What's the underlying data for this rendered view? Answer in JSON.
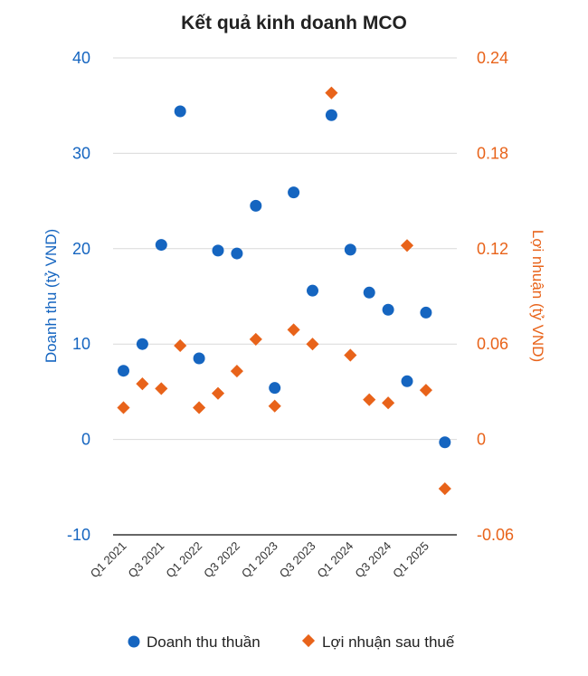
{
  "chart_data": {
    "type": "scatter",
    "title": "Kết quả kinh doanh MCO",
    "ylabel": "Doanh thu (tỷ VND)",
    "y2label": "Lợi nhuận (tỷ VND)",
    "ylim": [
      -10,
      40
    ],
    "y2lim": [
      -0.06,
      0.24
    ],
    "yticks": [
      "40",
      "30",
      "20",
      "10",
      "0",
      "-10"
    ],
    "yticks_values": [
      40,
      30,
      20,
      10,
      0,
      -10
    ],
    "y2ticks": [
      "0.24",
      "0.18",
      "0.12",
      "0.06",
      "0",
      "-0.06"
    ],
    "y2ticks_values": [
      0.24,
      0.18,
      0.12,
      0.06,
      0,
      -0.06
    ],
    "x": [
      "Q1 2021",
      "Q2 2021",
      "Q3 2021",
      "Q4 2021",
      "Q1 2022",
      "Q2 2022",
      "Q3 2022",
      "Q4 2022",
      "Q1 2023",
      "Q2 2023",
      "Q3 2023",
      "Q4 2023",
      "Q1 2024",
      "Q2 2024",
      "Q3 2024",
      "Q4 2024",
      "Q1 2025",
      "Q2 2025"
    ],
    "xtick_labels": [
      "Q1 2021",
      "Q3 2021",
      "Q1 2022",
      "Q3 2022",
      "Q1 2023",
      "Q3 2023",
      "Q1 2024",
      "Q3 2024",
      "Q1 2025"
    ],
    "series": [
      {
        "name": "Doanh thu thuần",
        "axis": "left",
        "marker": "circle",
        "color": "#1565c0",
        "values": [
          7.2,
          10.0,
          20.4,
          34.4,
          8.5,
          19.8,
          19.5,
          24.5,
          5.4,
          25.9,
          15.6,
          34.0,
          19.9,
          15.4,
          13.6,
          6.1,
          13.3,
          -0.3
        ]
      },
      {
        "name": "Lợi nhuận sau thuế",
        "axis": "right",
        "marker": "diamond",
        "color": "#e8631a",
        "values": [
          0.02,
          0.035,
          0.032,
          0.059,
          0.02,
          0.029,
          0.043,
          0.063,
          0.021,
          0.069,
          0.06,
          0.218,
          0.053,
          0.025,
          0.023,
          0.122,
          0.031,
          -0.031
        ]
      }
    ],
    "legend": [
      "Doanh thu thuần",
      "Lợi nhuận sau thuế"
    ],
    "legend_position": "bottom",
    "grid": true
  }
}
